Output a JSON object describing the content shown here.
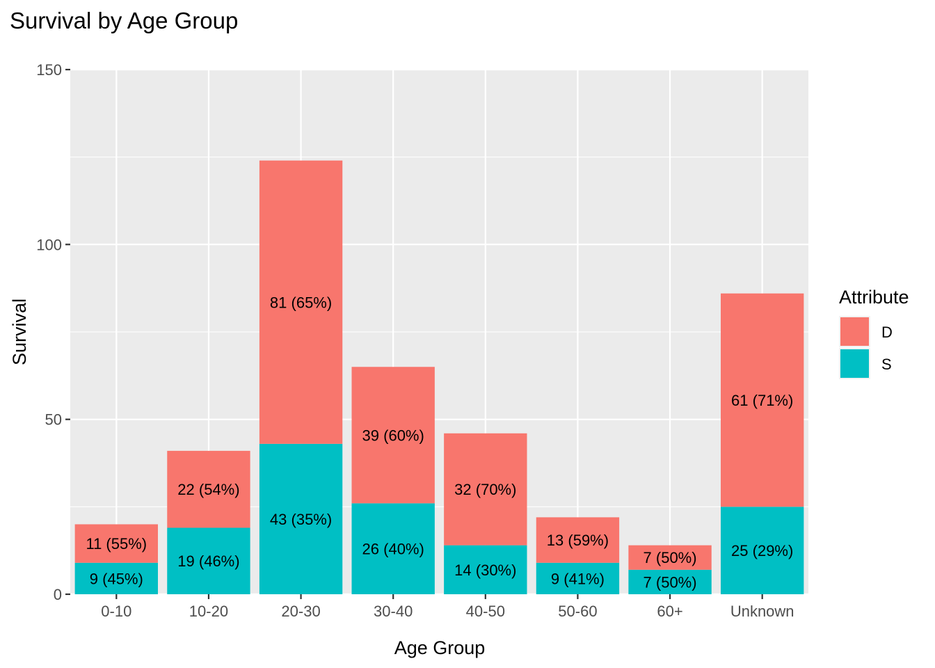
{
  "chart_data": {
    "type": "bar",
    "stacked": true,
    "title": "Survival by Age Group",
    "xlabel": "Age Group",
    "ylabel": "Survival",
    "ylim": [
      0,
      150
    ],
    "yticks": [
      0,
      50,
      100,
      150
    ],
    "grid": true,
    "legend": {
      "title": "Attribute",
      "position": "right"
    },
    "categories": [
      "0-10",
      "10-20",
      "20-30",
      "30-40",
      "40-50",
      "50-60",
      "60+",
      "Unknown"
    ],
    "series": [
      {
        "name": "S",
        "color": "#00BFC4",
        "values": [
          9,
          19,
          43,
          26,
          14,
          9,
          7,
          25
        ],
        "labels": [
          "9 (45%)",
          "19 (46%)",
          "43 (35%)",
          "26 (40%)",
          "14 (30%)",
          "9 (41%)",
          "7 (50%)",
          "25 (29%)"
        ]
      },
      {
        "name": "D",
        "color": "#F8766D",
        "values": [
          11,
          22,
          81,
          39,
          32,
          13,
          7,
          61
        ],
        "labels": [
          "11 (55%)",
          "22 (54%)",
          "81 (65%)",
          "39 (60%)",
          "32 (70%)",
          "13 (59%)",
          "7 (50%)",
          "61 (71%)"
        ]
      }
    ]
  }
}
